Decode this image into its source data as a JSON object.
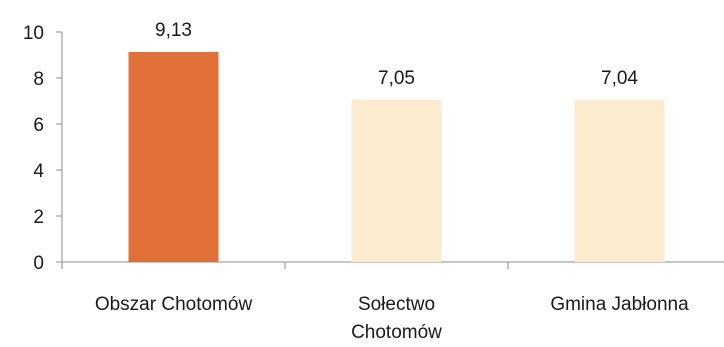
{
  "chart_data": {
    "type": "bar",
    "categories": [
      [
        "Obszar Chotomów"
      ],
      [
        "Sołectwo",
        "Chotomów"
      ],
      [
        "Gmina Jabłonna"
      ]
    ],
    "values": [
      9.13,
      7.05,
      7.04
    ],
    "value_labels": [
      "9,13",
      "7,05",
      "7,04"
    ],
    "bar_colors": [
      "#E07038",
      "#FDEBD0",
      "#FDEBD0"
    ],
    "ylim": [
      0,
      10
    ],
    "yticks": [
      0,
      2,
      4,
      6,
      8,
      10
    ],
    "title": "",
    "xlabel": "",
    "ylabel": "",
    "grid": false,
    "legend": "none"
  }
}
